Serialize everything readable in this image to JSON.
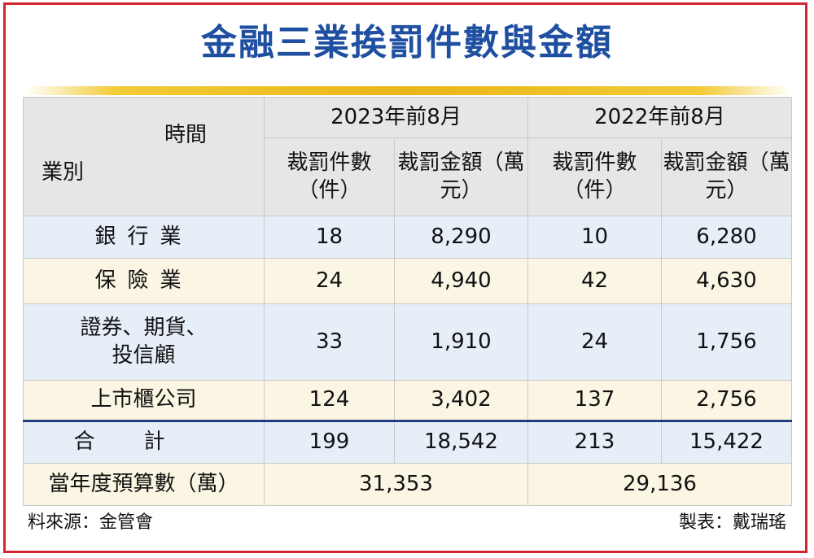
{
  "title": "金融三業挨罰件數與金額",
  "header": {
    "time_label": "時間",
    "category_label": "業別",
    "periods": [
      "2023年前8月",
      "2022年前8月"
    ],
    "col_count": "裁罰件數（件）",
    "col_amount": "裁罰金額（萬元）"
  },
  "chart_data": {
    "type": "table",
    "title": "金融三業挨罰件數與金額",
    "columns": [
      "2023年前8月 裁罰件數（件）",
      "2023年前8月 裁罰金額（萬元）",
      "2022年前8月 裁罰件數（件）",
      "2022年前8月 裁罰金額（萬元）"
    ],
    "rows": [
      {
        "label": "銀行業",
        "values": [
          "18",
          "8,290",
          "10",
          "6,280"
        ]
      },
      {
        "label": "保險業",
        "values": [
          "24",
          "4,940",
          "42",
          "4,630"
        ]
      },
      {
        "label": "證券、期貨、投信顧",
        "values": [
          "33",
          "1,910",
          "24",
          "1,756"
        ]
      },
      {
        "label": "上市櫃公司",
        "values": [
          "124",
          "3,402",
          "137",
          "2,756"
        ]
      },
      {
        "label": "合計",
        "values": [
          "199",
          "18,542",
          "213",
          "15,422"
        ]
      }
    ],
    "budget": {
      "label": "當年度預算數（萬）",
      "values": [
        "31,353",
        "29,136"
      ]
    }
  },
  "footer": {
    "source": "料來源：金管會",
    "credit": "製表：戴瑞瑤"
  },
  "colors": {
    "title": "#1f4fa0",
    "frame": "#d22630",
    "header_bg": "#e6e6e6",
    "row_blue": "#e6eef8",
    "row_cream": "#fbf5e3",
    "total_rule": "#1f3f80",
    "gold_rule": "#e9b61a"
  }
}
